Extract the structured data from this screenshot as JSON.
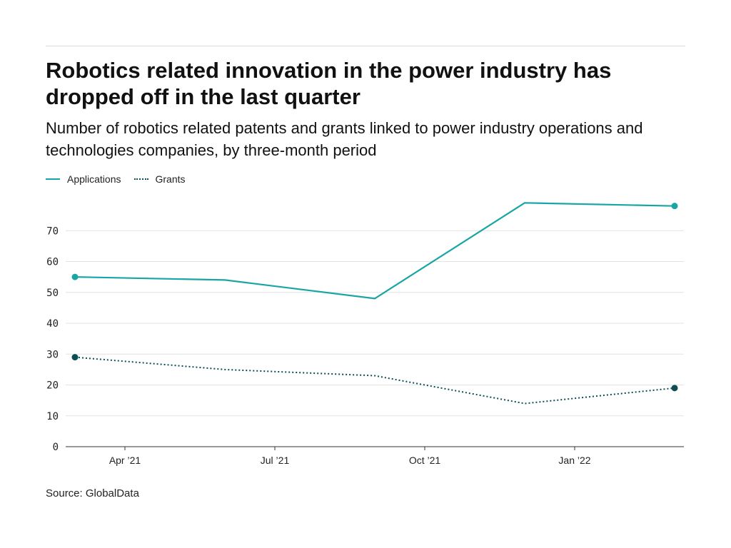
{
  "header": {
    "title": "Robotics related innovation in the power industry has dropped off in the last quarter",
    "subtitle": "Number of robotics related patents and grants linked to power industry operations and technologies companies, by three-month period"
  },
  "legend": {
    "applications": "Applications",
    "grants": "Grants"
  },
  "footer": {
    "source": "Source: GlobalData"
  },
  "colors": {
    "applications": "#1aa5a5",
    "grants": "#0c4f52",
    "grid": "#e3e3e3",
    "axis": "#333333"
  },
  "chart_data": {
    "type": "line",
    "title": "Robotics related innovation in the power industry has dropped off in the last quarter",
    "subtitle": "Number of robotics related patents and grants linked to power industry operations and technologies companies, by three-month period",
    "x": [
      "2021-03",
      "2021-06",
      "2021-09",
      "2021-12",
      "2022-03"
    ],
    "x_tick_labels": [
      "Apr ’21",
      "Jul ’21",
      "Oct ’21",
      "Jan ’22"
    ],
    "x_tick_positions": [
      "2021-04",
      "2021-07",
      "2021-10",
      "2022-01"
    ],
    "series": [
      {
        "name": "Applications",
        "values": [
          55,
          54,
          48,
          79,
          78
        ],
        "style": "solid",
        "color": "#1aa5a5"
      },
      {
        "name": "Grants",
        "values": [
          29,
          25,
          23,
          14,
          19
        ],
        "style": "dotted",
        "color": "#0c4f52"
      }
    ],
    "y_ticks": [
      0,
      10,
      20,
      30,
      40,
      50,
      60,
      70
    ],
    "ylim": [
      0,
      80
    ],
    "xlabel": "",
    "ylabel": "",
    "grid": true,
    "legend_position": "top-left",
    "endpoint_markers": true
  }
}
